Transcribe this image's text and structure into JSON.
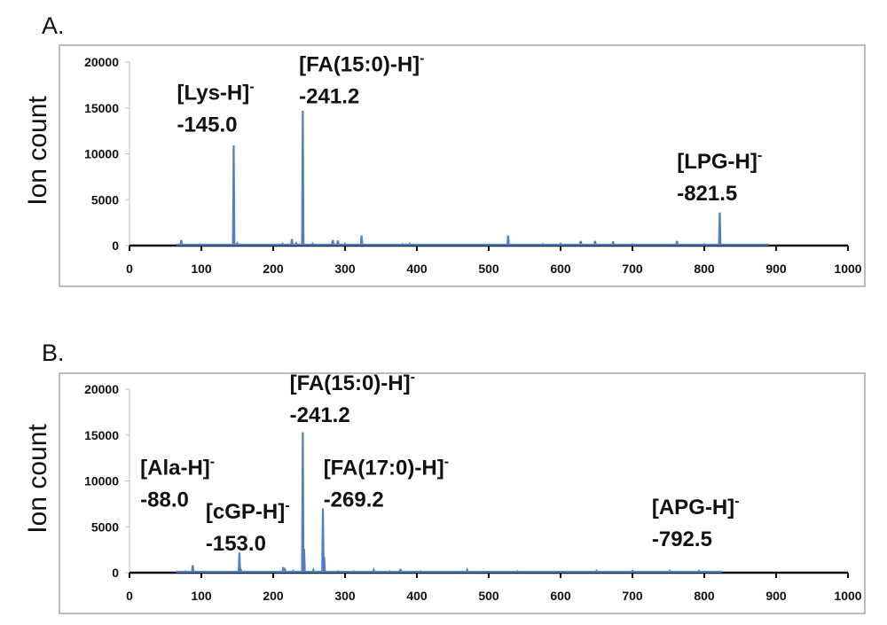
{
  "chart_data": [
    {
      "type": "line",
      "panel_label": "A.",
      "ylabel": "Ion count",
      "xlabel": "",
      "xlim": [
        0,
        1000
      ],
      "ylim": [
        0,
        20000
      ],
      "xticks": [
        0,
        100,
        200,
        300,
        400,
        500,
        600,
        700,
        800,
        900,
        1000
      ],
      "yticks": [
        0,
        5000,
        10000,
        15000,
        20000
      ],
      "data_range": [
        65,
        890
      ],
      "line_color": "#4f81bd",
      "peaks": [
        [
          72,
          600
        ],
        [
          98,
          150
        ],
        [
          145,
          10900
        ],
        [
          150,
          250
        ],
        [
          213,
          200
        ],
        [
          226,
          700
        ],
        [
          232,
          250
        ],
        [
          241.2,
          14700
        ],
        [
          255,
          200
        ],
        [
          283,
          600
        ],
        [
          290,
          550
        ],
        [
          300,
          200
        ],
        [
          323,
          1100
        ],
        [
          380,
          150
        ],
        [
          390,
          200
        ],
        [
          527,
          1100
        ],
        [
          575,
          150
        ],
        [
          600,
          200
        ],
        [
          628,
          500
        ],
        [
          648,
          500
        ],
        [
          673,
          450
        ],
        [
          700,
          150
        ],
        [
          762,
          500
        ],
        [
          800,
          150
        ],
        [
          821.5,
          3600
        ]
      ],
      "annotations": [
        {
          "name": "[Lys-H]",
          "sup": "-",
          "value": "-145.0",
          "x": 66,
          "y": 15900
        },
        {
          "name": "[FA(15:0)-H]",
          "sup": "-",
          "value": "-241.2",
          "x": 236,
          "y": 19000
        },
        {
          "name": "[LPG-H]",
          "sup": "-",
          "value": "-821.5",
          "x": 762,
          "y": 8400
        }
      ]
    },
    {
      "type": "line",
      "panel_label": "B.",
      "ylabel": "Ion count",
      "xlabel": "",
      "xlim": [
        0,
        1000
      ],
      "ylim": [
        0,
        20000
      ],
      "xticks": [
        0,
        100,
        200,
        300,
        400,
        500,
        600,
        700,
        800,
        900,
        1000
      ],
      "yticks": [
        0,
        5000,
        10000,
        15000,
        20000
      ],
      "data_range": [
        65,
        825
      ],
      "line_color": "#4f81bd",
      "peaks": [
        [
          78,
          150
        ],
        [
          88,
          800
        ],
        [
          120,
          100
        ],
        [
          153,
          2200
        ],
        [
          155,
          300
        ],
        [
          214,
          600
        ],
        [
          216,
          500
        ],
        [
          228,
          200
        ],
        [
          241.2,
          15300
        ],
        [
          243,
          2600
        ],
        [
          256,
          300
        ],
        [
          269.2,
          7000
        ],
        [
          271,
          1700
        ],
        [
          290,
          150
        ],
        [
          312,
          150
        ],
        [
          340,
          300
        ],
        [
          362,
          150
        ],
        [
          377,
          400
        ],
        [
          405,
          150
        ],
        [
          470,
          300
        ],
        [
          540,
          150
        ],
        [
          650,
          200
        ],
        [
          700,
          200
        ],
        [
          752,
          200
        ],
        [
          792.5,
          200
        ]
      ],
      "annotations": [
        {
          "name": "[FA(15:0)-H]",
          "sup": "-",
          "value": "-241.2",
          "x": 223,
          "y": 19900
        },
        {
          "name": "[Ala-H]",
          "sup": "-",
          "value": "-88.0",
          "x": 15,
          "y": 10700
        },
        {
          "name": "[cGP-H]",
          "sup": "-",
          "value": "-153.0",
          "x": 106,
          "y": 5900
        },
        {
          "name": "[FA(17:0)-H]",
          "sup": "-",
          "value": "-269.2",
          "x": 270,
          "y": 10700
        },
        {
          "name": "[APG-H]",
          "sup": "-",
          "value": "-792.5",
          "x": 727,
          "y": 6400
        }
      ]
    }
  ]
}
